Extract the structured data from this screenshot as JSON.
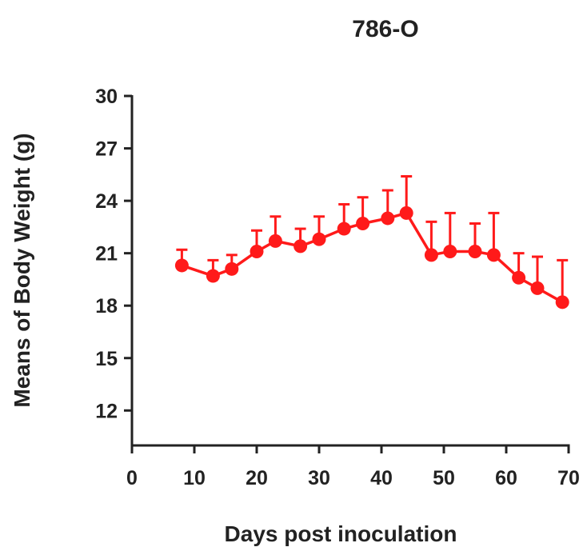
{
  "chart_data": {
    "type": "line",
    "title": "786-O",
    "xlabel": "Days post inoculation",
    "ylabel": "Means of Body Weight (g)",
    "xlim": [
      0,
      70
    ],
    "ylim": [
      10,
      30
    ],
    "xticks": [
      "0",
      "10",
      "20",
      "30",
      "40",
      "50",
      "60",
      "70"
    ],
    "yticks": [
      "12",
      "15",
      "18",
      "21",
      "24",
      "27",
      "30"
    ],
    "grid": false,
    "legend": "none",
    "series": [
      {
        "color": "#ff1a1a",
        "x": [
          8,
          13,
          16,
          20,
          23,
          27,
          30,
          34,
          37,
          41,
          44,
          48,
          51,
          55,
          58,
          62,
          65,
          69
        ],
        "y": [
          20.3,
          19.7,
          20.1,
          21.1,
          21.7,
          21.4,
          21.8,
          22.4,
          22.7,
          23.0,
          23.3,
          20.9,
          21.1,
          21.1,
          20.9,
          19.6,
          19.0,
          18.2
        ],
        "error_upper": [
          0.9,
          0.9,
          0.8,
          1.2,
          1.4,
          1.0,
          1.3,
          1.4,
          1.5,
          1.6,
          2.1,
          1.9,
          2.2,
          1.6,
          2.4,
          1.4,
          1.8,
          2.4
        ]
      }
    ]
  }
}
